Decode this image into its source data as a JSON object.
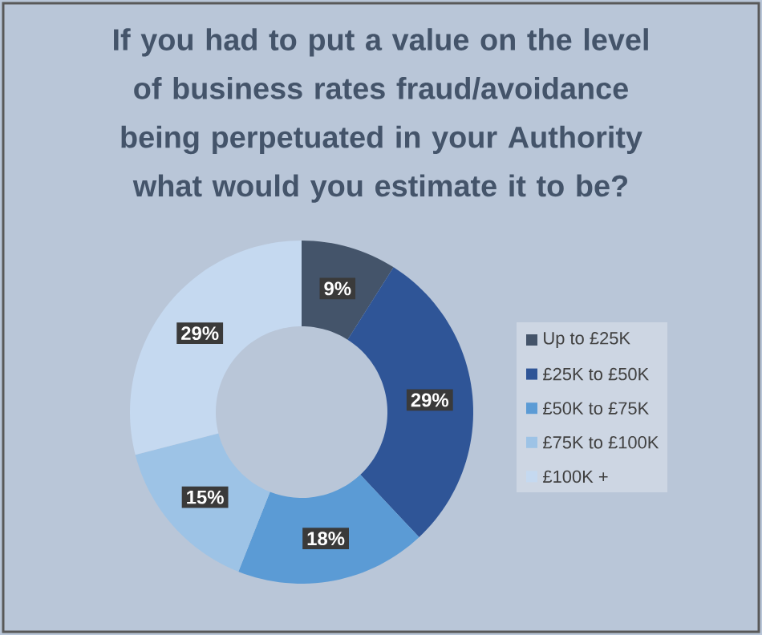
{
  "chart_data": {
    "type": "donut",
    "title": "If you had to put a value on the level of business rates fraud/avoidance being perpetuated in your Authority what would you estimate it to be?",
    "categories": [
      "Up to £25K",
      "£25K to £50K",
      "£50K to £75K",
      "£75K to £100K",
      "£100K +"
    ],
    "values": [
      9,
      29,
      18,
      15,
      29
    ],
    "value_labels": [
      "9%",
      "29%",
      "18%",
      "15%",
      "29%"
    ],
    "colors": [
      "#44546a",
      "#2f5597",
      "#5b9bd5",
      "#9dc3e6",
      "#c5d9f0"
    ],
    "legend": "right"
  }
}
